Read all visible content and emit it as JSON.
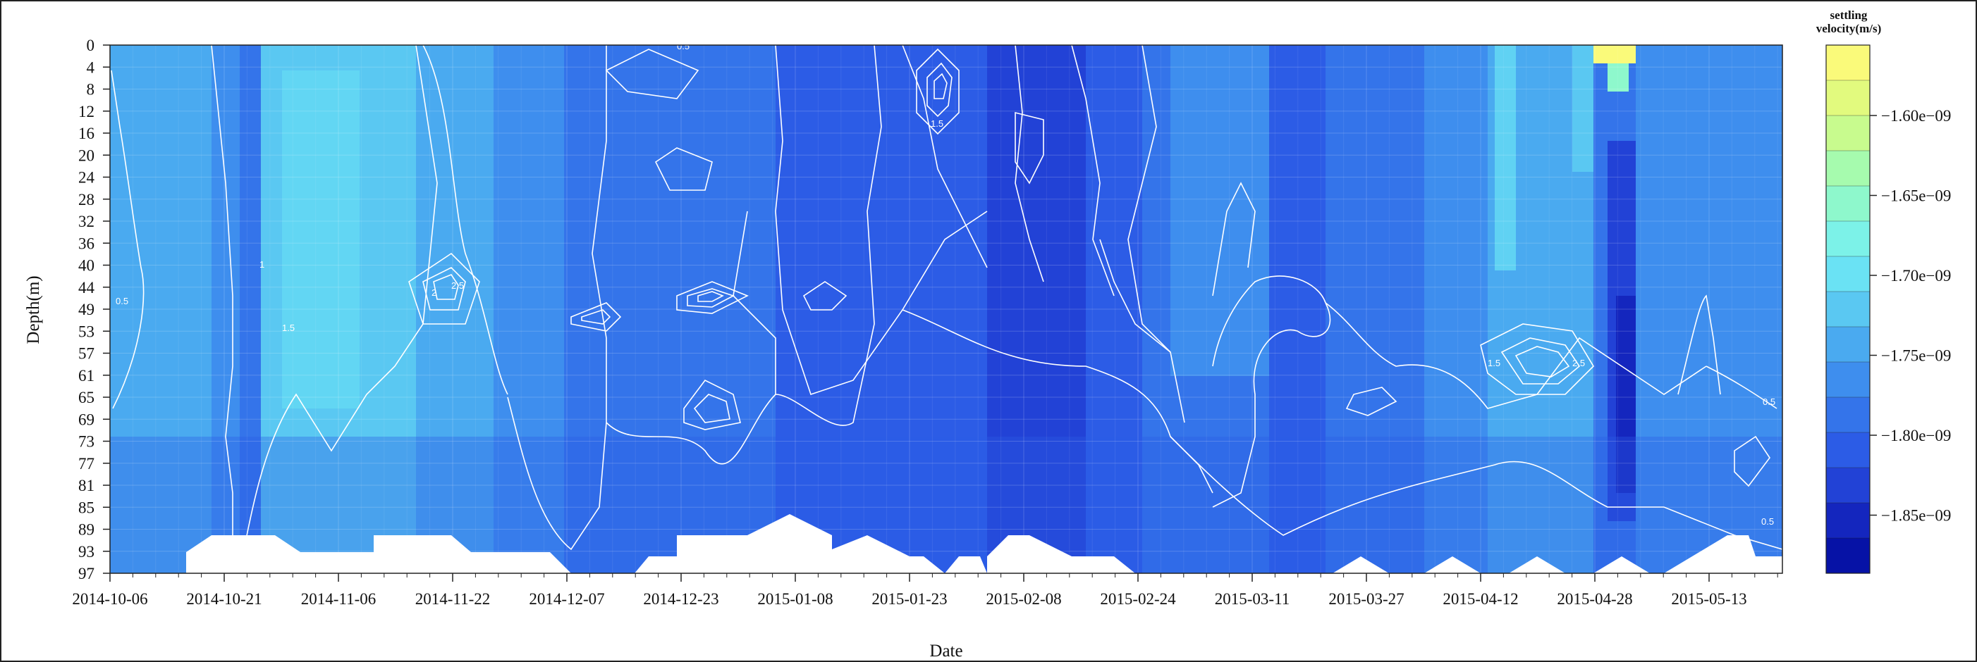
{
  "chart_data": {
    "type": "heatmap",
    "xlabel": "Date",
    "ylabel": "Depth(m)",
    "x_ticks": [
      "2014-10-06",
      "2014-10-21",
      "2014-11-06",
      "2014-11-22",
      "2014-12-07",
      "2014-12-23",
      "2015-01-08",
      "2015-01-23",
      "2015-02-08",
      "2015-02-24",
      "2015-03-11",
      "2015-03-27",
      "2015-04-12",
      "2015-04-28",
      "2015-05-13"
    ],
    "y_ticks": [
      "0",
      "4",
      "8",
      "12",
      "16",
      "20",
      "24",
      "28",
      "32",
      "36",
      "40",
      "44",
      "49",
      "53",
      "57",
      "61",
      "65",
      "69",
      "73",
      "77",
      "81",
      "85",
      "89",
      "93",
      "97"
    ],
    "legend": {
      "title_line1": "settling",
      "title_line2": "velocity(m/s)",
      "tick_labels": [
        "−1.60e−09",
        "−1.65e−09",
        "−1.70e−09",
        "−1.75e−09",
        "−1.80e−09",
        "−1.85e−09"
      ],
      "colors": [
        "#fafa7a",
        "#e2fa7e",
        "#c8fb8e",
        "#a6fbae",
        "#8ef8cc",
        "#7cf2e8",
        "#6ae2f4",
        "#5ac8f2",
        "#4aaaf0",
        "#3e8eee",
        "#3474ea",
        "#2c5ce6",
        "#2242d6",
        "#1426be",
        "#0612a6"
      ]
    },
    "contour_labels": [
      "0.5",
      "1",
      "1.5",
      "2",
      "2.5"
    ],
    "grid": true
  }
}
